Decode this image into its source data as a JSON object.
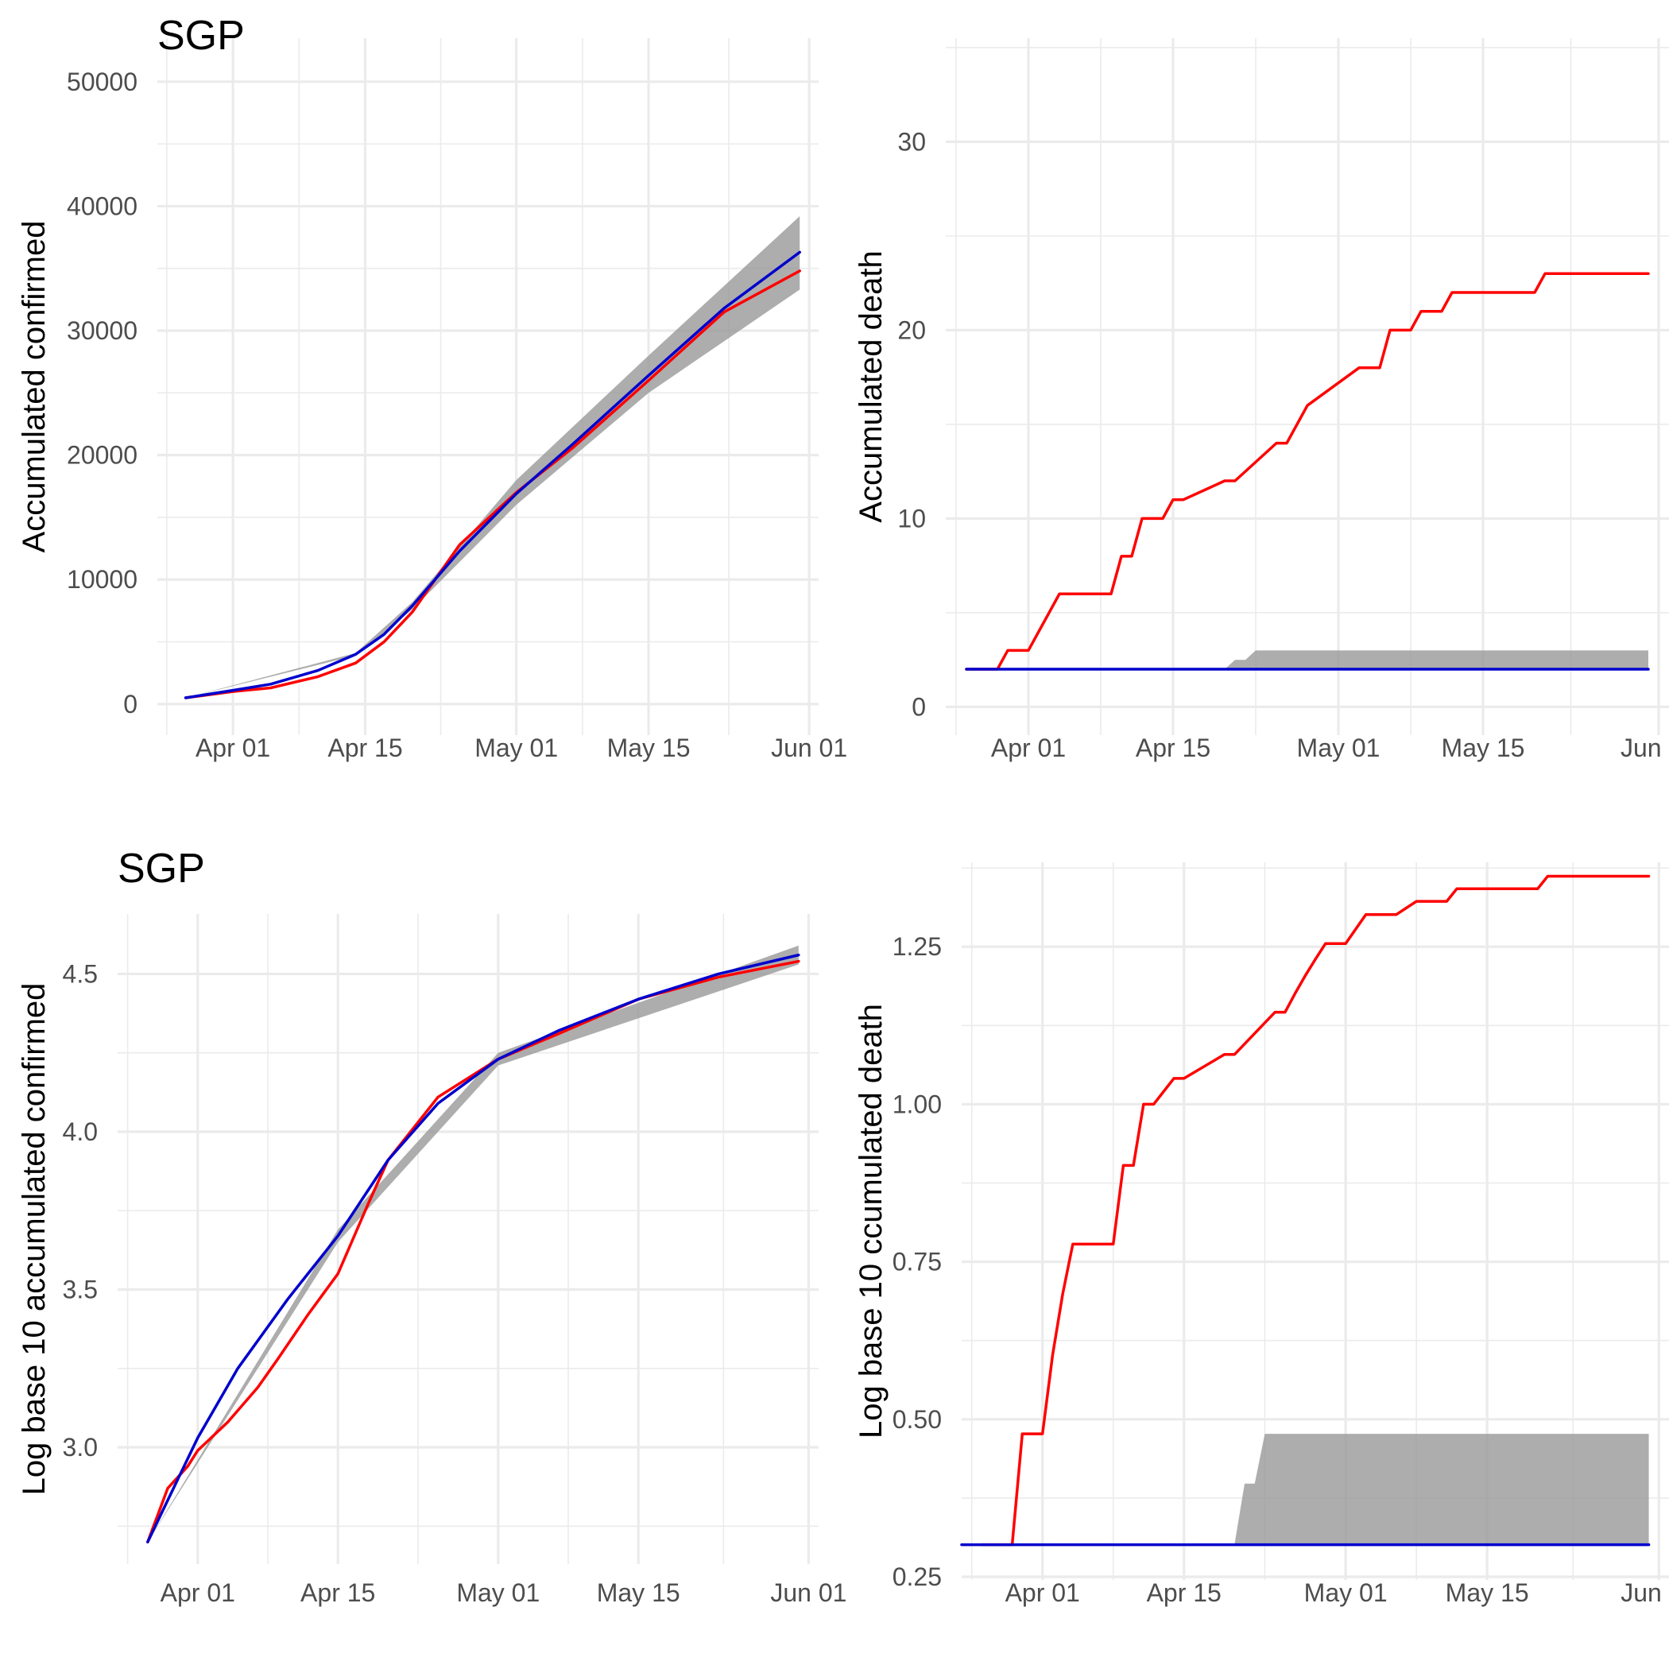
{
  "chart_data": [
    {
      "type": "line",
      "title": "SGP",
      "xlabel": "",
      "ylabel": "Accumulated confirmed",
      "xlim": [
        "2020-03-24",
        "2020-06-02"
      ],
      "ylim": [
        -2500,
        53500
      ],
      "x_ticks": [
        {
          "date": "2020-04-01",
          "label": "Apr 01"
        },
        {
          "date": "2020-04-15",
          "label": "Apr 15"
        },
        {
          "date": "2020-05-01",
          "label": "May 01"
        },
        {
          "date": "2020-05-15",
          "label": "May 15"
        },
        {
          "date": "2020-06-01",
          "label": "Jun 01"
        }
      ],
      "y_ticks": [
        {
          "value": 0,
          "label": "0"
        },
        {
          "value": 10000,
          "label": "10000"
        },
        {
          "value": 20000,
          "label": "20000"
        },
        {
          "value": 30000,
          "label": "30000"
        },
        {
          "value": 40000,
          "label": "40000"
        },
        {
          "value": 50000,
          "label": "50000"
        }
      ],
      "grid": true,
      "colors": {
        "observed": "#ff0000",
        "fitted": "#0000cd",
        "band": "#999999"
      },
      "series": [
        {
          "role": "observed",
          "x": [
            "2020-03-27",
            "2020-04-01",
            "2020-04-05",
            "2020-04-10",
            "2020-04-14",
            "2020-04-17",
            "2020-04-20",
            "2020-04-25",
            "2020-05-01",
            "2020-05-07",
            "2020-05-15",
            "2020-05-23",
            "2020-05-31"
          ],
          "y": [
            500,
            1000,
            1300,
            2200,
            3300,
            5000,
            7400,
            12800,
            17000,
            20600,
            26000,
            31500,
            34800
          ]
        },
        {
          "role": "fitted",
          "x": [
            "2020-03-27",
            "2020-04-01",
            "2020-04-05",
            "2020-04-10",
            "2020-04-14",
            "2020-04-17",
            "2020-04-20",
            "2020-04-25",
            "2020-05-01",
            "2020-05-07",
            "2020-05-15",
            "2020-05-23",
            "2020-05-31"
          ],
          "y": [
            500,
            1100,
            1600,
            2700,
            4000,
            5600,
            7900,
            12300,
            16900,
            20900,
            26400,
            31800,
            36300
          ]
        },
        {
          "role": "band",
          "x": [
            "2020-03-27",
            "2020-04-14",
            "2020-04-20",
            "2020-05-01",
            "2020-05-15",
            "2020-05-31"
          ],
          "y_low": [
            500,
            3900,
            7600,
            16000,
            25000,
            33300
          ],
          "y_high": [
            500,
            4100,
            8200,
            18000,
            28000,
            39200
          ]
        }
      ]
    },
    {
      "type": "line",
      "title": "",
      "xlabel": "",
      "ylabel": "Accumulated death",
      "xlim": [
        "2020-03-24",
        "2020-06-02"
      ],
      "ylim": [
        -1.5,
        35.5
      ],
      "x_ticks": [
        {
          "date": "2020-04-01",
          "label": "Apr 01"
        },
        {
          "date": "2020-04-15",
          "label": "Apr 15"
        },
        {
          "date": "2020-05-01",
          "label": "May 01"
        },
        {
          "date": "2020-05-15",
          "label": "May 15"
        },
        {
          "date": "2020-06-01",
          "label": "Jun 01"
        }
      ],
      "y_ticks": [
        {
          "value": 0,
          "label": "0"
        },
        {
          "value": 10,
          "label": "10"
        },
        {
          "value": 20,
          "label": "20"
        },
        {
          "value": 30,
          "label": "30"
        }
      ],
      "grid": true,
      "colors": {
        "observed": "#ff0000",
        "fitted": "#0000cd",
        "band": "#999999"
      },
      "series": [
        {
          "role": "observed",
          "x": [
            "2020-03-26",
            "2020-03-29",
            "2020-03-30",
            "2020-04-01",
            "2020-04-04",
            "2020-04-09",
            "2020-04-10",
            "2020-04-11",
            "2020-04-12",
            "2020-04-14",
            "2020-04-15",
            "2020-04-16",
            "2020-04-20",
            "2020-04-21",
            "2020-04-25",
            "2020-04-26",
            "2020-04-28",
            "2020-05-03",
            "2020-05-05",
            "2020-05-06",
            "2020-05-08",
            "2020-05-09",
            "2020-05-11",
            "2020-05-12",
            "2020-05-15",
            "2020-05-16",
            "2020-05-20",
            "2020-05-21",
            "2020-05-31"
          ],
          "y": [
            2,
            2,
            3,
            3,
            6,
            6,
            8,
            8,
            10,
            10,
            11,
            11,
            12,
            12,
            14,
            14,
            16,
            18,
            18,
            20,
            20,
            21,
            21,
            22,
            22,
            22,
            22,
            23,
            23
          ]
        },
        {
          "role": "fitted",
          "x": [
            "2020-03-26",
            "2020-05-31"
          ],
          "y": [
            2,
            2
          ]
        },
        {
          "role": "band",
          "x": [
            "2020-04-20",
            "2020-04-21",
            "2020-04-22",
            "2020-04-23",
            "2020-05-31"
          ],
          "y_low": [
            2,
            2,
            2,
            2,
            2
          ],
          "y_high": [
            2,
            2.5,
            2.5,
            3,
            3
          ]
        }
      ]
    },
    {
      "type": "line",
      "title": "SGP",
      "xlabel": "",
      "ylabel": "Log base 10 accumulated confirmed",
      "xlim": [
        "2020-03-24",
        "2020-06-02"
      ],
      "ylim": [
        2.63,
        4.69
      ],
      "x_ticks": [
        {
          "date": "2020-04-01",
          "label": "Apr 01"
        },
        {
          "date": "2020-04-15",
          "label": "Apr 15"
        },
        {
          "date": "2020-05-01",
          "label": "May 01"
        },
        {
          "date": "2020-05-15",
          "label": "May 15"
        },
        {
          "date": "2020-06-01",
          "label": "Jun 01"
        }
      ],
      "y_ticks": [
        {
          "value": 3.0,
          "label": "3.0"
        },
        {
          "value": 3.5,
          "label": "3.5"
        },
        {
          "value": 4.0,
          "label": "4.0"
        },
        {
          "value": 4.5,
          "label": "4.5"
        }
      ],
      "grid": true,
      "colors": {
        "observed": "#ff0000",
        "fitted": "#0000cd",
        "band": "#999999"
      },
      "series": [
        {
          "role": "observed",
          "x": [
            "2020-03-27",
            "2020-03-29",
            "2020-03-31",
            "2020-04-01",
            "2020-04-04",
            "2020-04-07",
            "2020-04-09",
            "2020-04-12",
            "2020-04-15",
            "2020-04-18",
            "2020-04-20",
            "2020-04-25",
            "2020-05-01",
            "2020-05-07",
            "2020-05-15",
            "2020-05-23",
            "2020-05-31"
          ],
          "y": [
            2.7,
            2.87,
            2.94,
            2.99,
            3.08,
            3.19,
            3.28,
            3.42,
            3.55,
            3.77,
            3.91,
            4.11,
            4.23,
            4.31,
            4.42,
            4.49,
            4.54
          ]
        },
        {
          "role": "fitted",
          "x": [
            "2020-03-27",
            "2020-04-01",
            "2020-04-05",
            "2020-04-10",
            "2020-04-15",
            "2020-04-20",
            "2020-04-25",
            "2020-05-01",
            "2020-05-07",
            "2020-05-15",
            "2020-05-23",
            "2020-05-31"
          ],
          "y": [
            2.7,
            3.03,
            3.25,
            3.47,
            3.67,
            3.91,
            4.09,
            4.23,
            4.32,
            4.42,
            4.5,
            4.56
          ]
        },
        {
          "role": "band",
          "x": [
            "2020-03-27",
            "2020-04-15",
            "2020-05-01",
            "2020-05-31"
          ],
          "y_low": [
            2.7,
            3.65,
            4.21,
            4.53
          ],
          "y_high": [
            2.7,
            3.69,
            4.25,
            4.59
          ]
        }
      ]
    },
    {
      "type": "line",
      "title": "",
      "xlabel": "",
      "ylabel": "Log base 10 ccumulated death",
      "xlim": [
        "2020-03-24",
        "2020-06-02"
      ],
      "ylim": [
        0.245,
        1.384
      ],
      "x_ticks": [
        {
          "date": "2020-04-01",
          "label": "Apr 01"
        },
        {
          "date": "2020-04-15",
          "label": "Apr 15"
        },
        {
          "date": "2020-05-01",
          "label": "May 01"
        },
        {
          "date": "2020-05-15",
          "label": "May 15"
        },
        {
          "date": "2020-06-01",
          "label": "Jun 01"
        }
      ],
      "y_ticks": [
        {
          "value": 0.25,
          "label": "0.25"
        },
        {
          "value": 0.5,
          "label": "0.50"
        },
        {
          "value": 0.75,
          "label": "0.75"
        },
        {
          "value": 1.0,
          "label": "1.00"
        },
        {
          "value": 1.25,
          "label": "1.25"
        }
      ],
      "grid": true,
      "colors": {
        "observed": "#ff0000",
        "fitted": "#0000cd",
        "band": "#999999"
      },
      "series": [
        {
          "role": "observed",
          "x": [
            "2020-03-26",
            "2020-03-29",
            "2020-03-30",
            "2020-04-01",
            "2020-04-02",
            "2020-04-03",
            "2020-04-04",
            "2020-04-08",
            "2020-04-09",
            "2020-04-10",
            "2020-04-11",
            "2020-04-12",
            "2020-04-14",
            "2020-04-15",
            "2020-04-19",
            "2020-04-20",
            "2020-04-24",
            "2020-04-25",
            "2020-04-26",
            "2020-04-27",
            "2020-04-28",
            "2020-04-29",
            "2020-05-01",
            "2020-05-03",
            "2020-05-05",
            "2020-05-06",
            "2020-05-08",
            "2020-05-09",
            "2020-05-11",
            "2020-05-12",
            "2020-05-15",
            "2020-05-16",
            "2020-05-20",
            "2020-05-21",
            "2020-05-31"
          ],
          "y": [
            0.301,
            0.301,
            0.477,
            0.477,
            0.602,
            0.699,
            0.778,
            0.778,
            0.903,
            0.903,
            1.0,
            1.0,
            1.041,
            1.041,
            1.079,
            1.079,
            1.146,
            1.146,
            1.176,
            1.204,
            1.23,
            1.255,
            1.255,
            1.301,
            1.301,
            1.301,
            1.322,
            1.322,
            1.322,
            1.342,
            1.342,
            1.342,
            1.342,
            1.362,
            1.362
          ]
        },
        {
          "role": "fitted",
          "x": [
            "2020-03-24",
            "2020-05-31"
          ],
          "y": [
            0.301,
            0.301
          ]
        },
        {
          "role": "band",
          "x": [
            "2020-04-20",
            "2020-04-21",
            "2020-04-22",
            "2020-04-23",
            "2020-05-31"
          ],
          "y_low": [
            0.301,
            0.301,
            0.301,
            0.301,
            0.301
          ],
          "y_high": [
            0.301,
            0.398,
            0.398,
            0.477,
            0.477
          ]
        }
      ]
    }
  ]
}
